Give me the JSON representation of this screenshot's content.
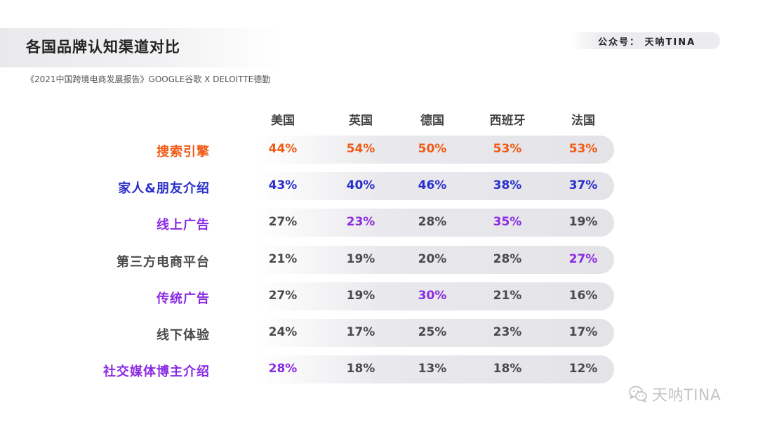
{
  "header": {
    "title": "各国品牌认知渠道对比",
    "subtitle": "《2021中国跨境电商发展报告》GOOGLE谷歌 X DELOITTE德勤",
    "account": "公众号：  天呐TINA"
  },
  "watermark": {
    "text": "天呐TINA",
    "icon": "wechat-icon"
  },
  "colors": {
    "orange": "#f05a14",
    "blue": "#2a2fcb",
    "purple": "#8a2be2",
    "gray": "#4a4a4a"
  },
  "chart_data": {
    "type": "table",
    "columns": [
      "美国",
      "英国",
      "德国",
      "西班牙",
      "法国"
    ],
    "rows": [
      {
        "label": "搜索引擎",
        "label_color": "orange",
        "values": [
          "44%",
          "54%",
          "50%",
          "53%",
          "53%"
        ],
        "value_colors": [
          "orange",
          "orange",
          "orange",
          "orange",
          "orange"
        ]
      },
      {
        "label": "家人&朋友介绍",
        "label_color": "blue",
        "values": [
          "43%",
          "40%",
          "46%",
          "38%",
          "37%"
        ],
        "value_colors": [
          "blue",
          "blue",
          "blue",
          "blue",
          "blue"
        ]
      },
      {
        "label": "线上广告",
        "label_color": "purple",
        "values": [
          "27%",
          "23%",
          "28%",
          "35%",
          "19%"
        ],
        "value_colors": [
          "gray",
          "purple",
          "gray",
          "purple",
          "gray"
        ]
      },
      {
        "label": "第三方电商平台",
        "label_color": "gray",
        "values": [
          "21%",
          "19%",
          "20%",
          "28%",
          "27%"
        ],
        "value_colors": [
          "gray",
          "gray",
          "gray",
          "gray",
          "purple"
        ]
      },
      {
        "label": "传统广告",
        "label_color": "purple",
        "values": [
          "27%",
          "19%",
          "30%",
          "21%",
          "16%"
        ],
        "value_colors": [
          "gray",
          "gray",
          "purple",
          "gray",
          "gray"
        ]
      },
      {
        "label": "线下体验",
        "label_color": "gray",
        "values": [
          "24%",
          "17%",
          "25%",
          "23%",
          "17%"
        ],
        "value_colors": [
          "gray",
          "gray",
          "gray",
          "gray",
          "gray"
        ]
      },
      {
        "label": "社交媒体博主介绍",
        "label_color": "purple",
        "values": [
          "28%",
          "18%",
          "13%",
          "18%",
          "12%"
        ],
        "value_colors": [
          "purple",
          "gray",
          "gray",
          "gray",
          "gray"
        ]
      }
    ]
  }
}
